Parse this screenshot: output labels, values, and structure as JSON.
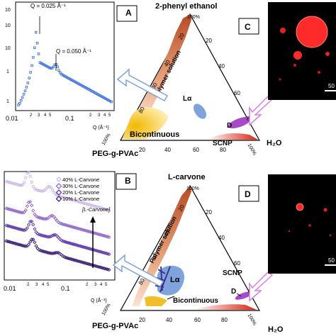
{
  "panels": {
    "A": "A",
    "B": "B",
    "C": "C",
    "D": "D"
  },
  "top": {
    "title": "2-phenyl ethanol",
    "axis_left": "PEG-g-PVAc",
    "axis_right": "H₂O",
    "apex_percent": "100%",
    "left_percent": "100%",
    "right_percent": "100%",
    "ticks_left_edge": [
      "20",
      "40",
      "60",
      "80"
    ],
    "ticks_right_edge": [
      "20",
      "40",
      "60",
      "80"
    ],
    "ticks_bottom": [
      "20",
      "40",
      "60",
      "80"
    ],
    "regions": {
      "polymer": "Polymer solution",
      "la": "Lα",
      "bicont": "Bicontinuous",
      "d": "D",
      "scnp": "SCNP"
    }
  },
  "bottom": {
    "title": "L-carvone",
    "axis_left": "PEG-g-PVAc",
    "axis_right": "H₂O",
    "apex_percent": "100%",
    "left_percent": "100%",
    "right_percent": "100%",
    "ticks_left_edge": [
      "20",
      "40",
      "60",
      "80"
    ],
    "ticks_right_edge": [
      "20",
      "40",
      "60",
      "80"
    ],
    "ticks_bottom": [
      "20",
      "40",
      "60",
      "80"
    ],
    "regions": {
      "polymer": "Polymer solution",
      "la": "Lα",
      "bicont": "Bicontinuous",
      "d": "D",
      "scnp": "SCNP"
    }
  },
  "plotA": {
    "annot1": "Q = 0.025 Å⁻¹",
    "annot2": "Q = 0.050 Å⁻¹",
    "xlabel": "Q (Å⁻¹)",
    "xticks_major": [
      "0.01",
      "0.1"
    ],
    "xticks_minor": [
      "2",
      "3",
      "4",
      "5",
      "2",
      "3",
      "4",
      "5"
    ],
    "yticks": [
      "10",
      "10",
      "10",
      "1",
      "1"
    ]
  },
  "plotB": {
    "legend": [
      "40% L-Carvone",
      "30% L-Carvone",
      "20% L-Carvone",
      "10% L-Carvone"
    ],
    "arrow_label": "[L-Carvone]",
    "xlabel": "Q (Å⁻¹)",
    "xticks_major": [
      "0.01",
      "0.1"
    ],
    "xticks_minor": [
      "2",
      "3",
      "4",
      "5",
      "2",
      "3",
      "4",
      "5"
    ]
  },
  "micrographs": {
    "scale_C": "50",
    "scale_D": "50"
  },
  "colors": {
    "marker_blue": "#3d6fd8",
    "purple_40": "#c9b5ea",
    "purple_30": "#8f63c9",
    "purple_20": "#5a31a8",
    "purple_10": "#34196e",
    "polymer_fill": "#c8673a",
    "bicont_fill": "#f0c02a",
    "la_fill": "#7ea3dd",
    "d_fill": "#a64ac9",
    "scnp_fill": "#e0301e",
    "micro_red": "#ff2a2a"
  }
}
